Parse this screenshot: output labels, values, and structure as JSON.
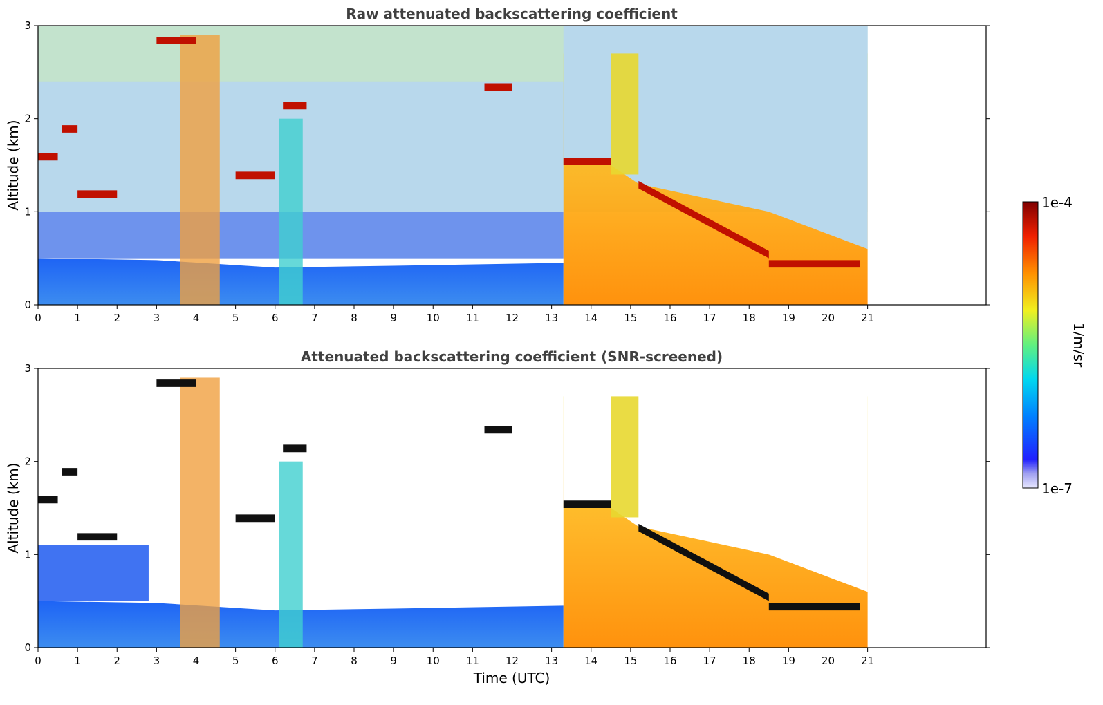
{
  "chart_data": [
    {
      "type": "heatmap",
      "title": "Raw attenuated backscattering coefficient",
      "xlabel": "",
      "ylabel": "Altitude (km)",
      "xlim": [
        0,
        24
      ],
      "ylim": [
        0,
        3
      ],
      "x_ticks": [
        0,
        1,
        2,
        3,
        4,
        5,
        6,
        7,
        8,
        9,
        10,
        11,
        12,
        13,
        14,
        15,
        16,
        17,
        18,
        19,
        20,
        21
      ],
      "y_ticks": [
        0,
        1,
        2,
        3
      ],
      "data_end_time_utc": 21,
      "features": {
        "boundary_layer_top_km": [
          [
            0,
            0.5
          ],
          [
            3,
            0.48
          ],
          [
            6,
            0.4
          ],
          [
            9,
            0.42
          ],
          [
            13.3,
            0.45
          ]
        ],
        "cloud_layers": [
          {
            "start": 0.0,
            "end": 0.5,
            "base_km": 1.55
          },
          {
            "start": 0.6,
            "end": 1.0,
            "base_km": 1.85
          },
          {
            "start": 1.0,
            "end": 2.0,
            "base_km": 1.15
          },
          {
            "start": 3.0,
            "end": 4.0,
            "base_km": 2.8
          },
          {
            "start": 5.0,
            "end": 6.0,
            "base_km": 1.35
          },
          {
            "start": 6.2,
            "end": 6.8,
            "base_km": 2.1
          },
          {
            "start": 11.3,
            "end": 12.0,
            "base_km": 2.3
          },
          {
            "start": 13.3,
            "end": 14.5,
            "base_km": 1.5
          },
          {
            "start": 15.2,
            "end": 18.5,
            "base_km_start": 1.25,
            "base_km_end": 0.5
          },
          {
            "start": 18.5,
            "end": 20.8,
            "base_km": 0.4
          }
        ],
        "high_signal_columns": [
          [
            3.6,
            4.6
          ],
          [
            6.1,
            6.7
          ],
          [
            13.3,
            21.0
          ]
        ]
      }
    },
    {
      "type": "heatmap",
      "title": "Attenuated backscattering coefficient (SNR-screened)",
      "xlabel": "Time (UTC)",
      "ylabel": "Altitude (km)",
      "xlim": [
        0,
        24
      ],
      "ylim": [
        0,
        3
      ],
      "x_ticks": [
        0,
        1,
        2,
        3,
        4,
        5,
        6,
        7,
        8,
        9,
        10,
        11,
        12,
        13,
        14,
        15,
        16,
        17,
        18,
        19,
        20,
        21
      ],
      "y_ticks": [
        0,
        1,
        2,
        3
      ],
      "data_end_time_utc": 21
    }
  ],
  "colorbar": {
    "label": "1/m/sr",
    "min_label": "1e-7",
    "max_label": "1e-4",
    "scale": "log",
    "colormap": "jet"
  }
}
